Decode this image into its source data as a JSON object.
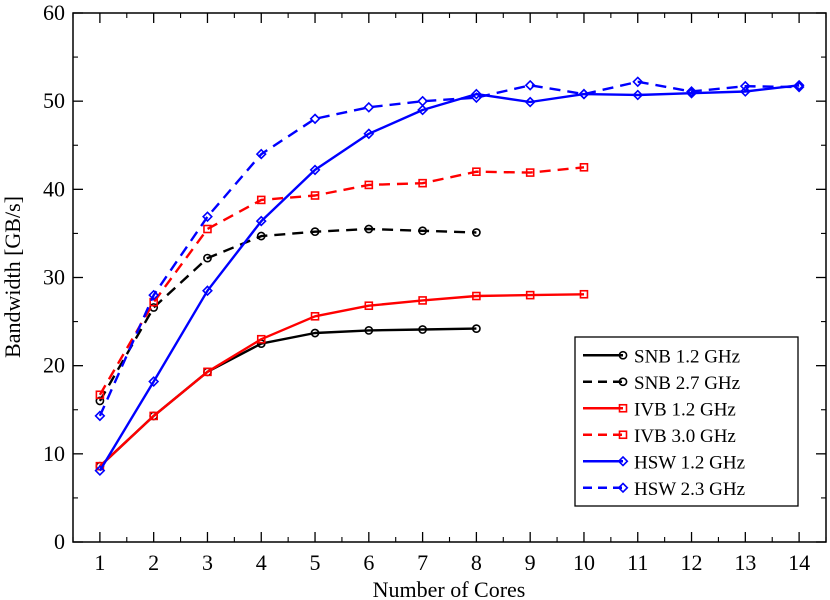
{
  "chart_data": {
    "type": "line",
    "title": "",
    "xlabel": "Number of Cores",
    "ylabel": "Bandwidth [GB/s]",
    "xlim": [
      0.5,
      14.5
    ],
    "ylim": [
      0,
      60
    ],
    "xticks": [
      1,
      2,
      3,
      4,
      5,
      6,
      7,
      8,
      9,
      10,
      11,
      12,
      13,
      14
    ],
    "yticks": [
      0,
      10,
      20,
      30,
      40,
      50,
      60
    ],
    "grid": false,
    "legend_position": "bottom-right",
    "series": [
      {
        "name": "SNB 1.2 GHz",
        "color": "#000000",
        "dashed": false,
        "marker": "circle",
        "x": [
          1,
          2,
          3,
          4,
          5,
          6,
          7,
          8
        ],
        "y": [
          8.6,
          14.3,
          19.3,
          22.5,
          23.7,
          24.0,
          24.1,
          24.2
        ]
      },
      {
        "name": "SNB 2.7 GHz",
        "color": "#000000",
        "dashed": true,
        "marker": "circle",
        "x": [
          1,
          2,
          3,
          4,
          5,
          6,
          7,
          8
        ],
        "y": [
          16.0,
          26.6,
          32.2,
          34.7,
          35.2,
          35.5,
          35.3,
          35.1
        ]
      },
      {
        "name": "IVB 1.2 GHz",
        "color": "#ff0000",
        "dashed": false,
        "marker": "square",
        "x": [
          1,
          2,
          3,
          4,
          5,
          6,
          7,
          8,
          9,
          10
        ],
        "y": [
          8.6,
          14.3,
          19.3,
          23.0,
          25.6,
          26.8,
          27.4,
          27.9,
          28.0,
          28.1
        ]
      },
      {
        "name": "IVB 3.0 GHz",
        "color": "#ff0000",
        "dashed": true,
        "marker": "square",
        "x": [
          1,
          2,
          3,
          4,
          5,
          6,
          7,
          8,
          9,
          10
        ],
        "y": [
          16.7,
          27.2,
          35.5,
          38.8,
          39.3,
          40.5,
          40.7,
          42.0,
          41.9,
          42.5
        ]
      },
      {
        "name": "HSW 1.2 GHz",
        "color": "#0000ff",
        "dashed": false,
        "marker": "diamond",
        "x": [
          1,
          2,
          3,
          4,
          5,
          6,
          7,
          8,
          9,
          10,
          11,
          12,
          13,
          14
        ],
        "y": [
          8.1,
          18.2,
          28.5,
          36.4,
          42.2,
          46.3,
          49.0,
          50.8,
          49.9,
          50.8,
          50.7,
          50.9,
          51.1,
          51.8
        ]
      },
      {
        "name": "HSW 2.3 GHz",
        "color": "#0000ff",
        "dashed": true,
        "marker": "diamond",
        "x": [
          1,
          2,
          3,
          4,
          5,
          6,
          7,
          8,
          9,
          10,
          11,
          12,
          13,
          14
        ],
        "y": [
          14.3,
          28.0,
          36.9,
          44.0,
          48.0,
          49.3,
          50.0,
          50.4,
          51.8,
          50.8,
          52.2,
          51.1,
          51.7,
          51.6
        ]
      }
    ]
  }
}
